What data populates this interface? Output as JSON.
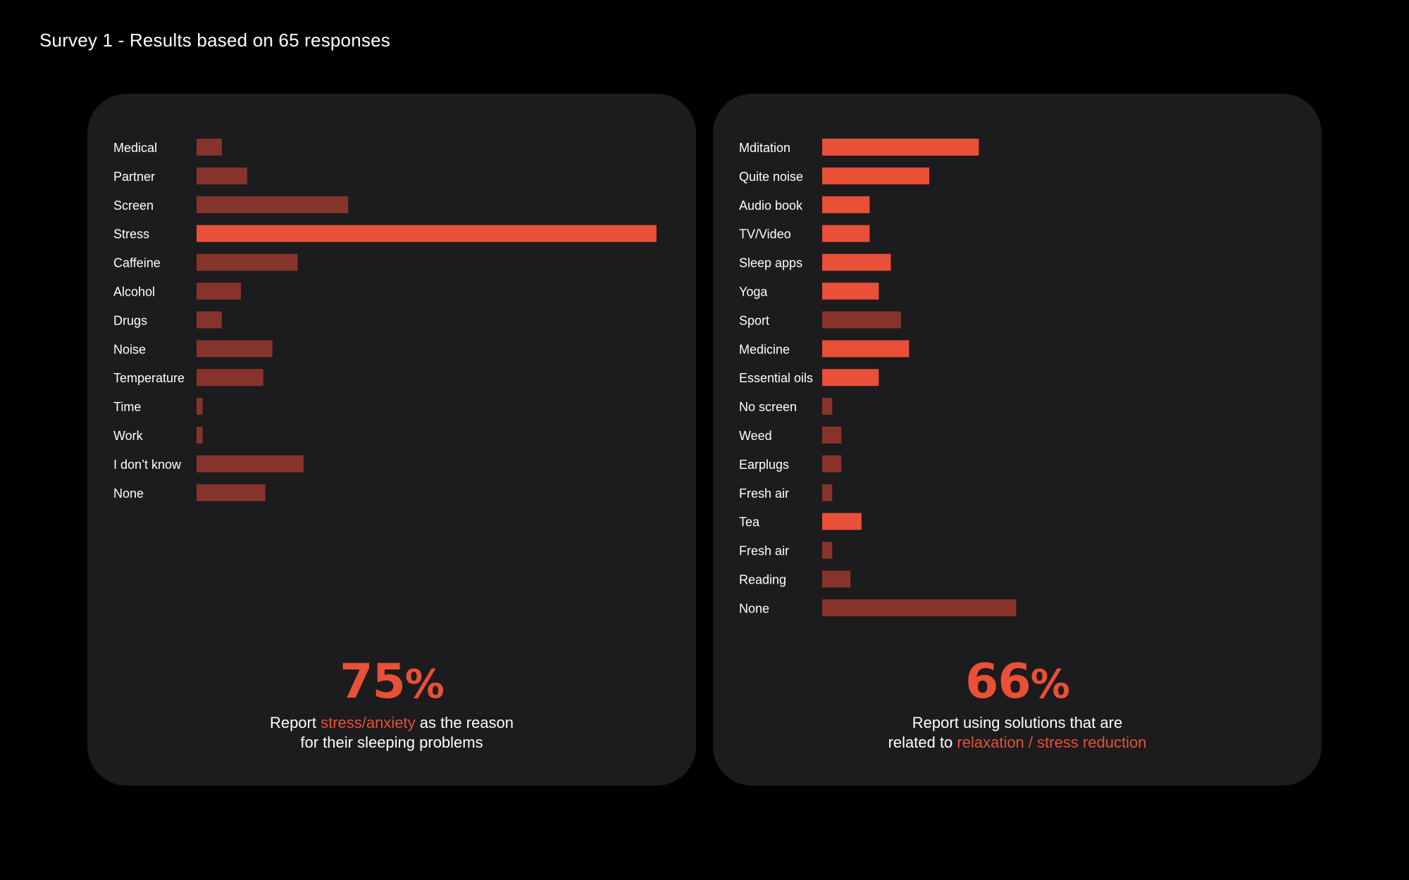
{
  "page": {
    "title": "Survey 1 -  Results based on 65 responses"
  },
  "colors": {
    "accent": "#e85037",
    "muted": "#86342b",
    "card_bg": "#1c1b1d",
    "page_bg": "#000000",
    "text": "#ffffff"
  },
  "left_panel": {
    "stat": {
      "number": "75",
      "unit": "%",
      "caption_pre": "Report ",
      "caption_highlight": "stress/anxiety",
      "caption_post": " as the reason",
      "caption_line2": "for their sleeping problems"
    }
  },
  "right_panel": {
    "stat": {
      "number": "66",
      "unit": "%",
      "caption_line1": "Report using solutions that are",
      "caption_pre": "related to ",
      "caption_highlight": "relaxation / stress reduction"
    }
  },
  "chart_data": [
    {
      "type": "bar",
      "orientation": "horizontal",
      "title": "",
      "xlabel": "",
      "ylabel": "",
      "grid": false,
      "xlim": [
        0,
        46
      ],
      "categories": [
        "Medical",
        "Partner",
        "Screen",
        "Stress",
        "Caffeine",
        "Alcohol",
        "Drugs",
        "Noise",
        "Temperature",
        "Time",
        "Work",
        "I don’t know",
        "None"
      ],
      "values": [
        2.5,
        5,
        15,
        45.5,
        10,
        4.4,
        2.5,
        7.5,
        6.6,
        0.6,
        0.6,
        10.6,
        6.8
      ],
      "highlighted": [
        false,
        false,
        false,
        true,
        false,
        false,
        false,
        false,
        false,
        false,
        false,
        false,
        false
      ]
    },
    {
      "type": "bar",
      "orientation": "horizontal",
      "title": "",
      "xlabel": "",
      "ylabel": "",
      "grid": false,
      "xlim": [
        0,
        46
      ],
      "categories": [
        "Mditation",
        "Quite noise",
        "Audio book",
        "TV/Video",
        "Sleep apps",
        "Yoga",
        "Sport",
        "Medicine",
        "Essential oils",
        "No screen",
        "Weed",
        "Earplugs",
        "Fresh air",
        "Tea",
        "Fresh air",
        "Reading",
        "None"
      ],
      "values": [
        15.5,
        10.6,
        4.7,
        4.7,
        6.8,
        5.6,
        7.8,
        8.6,
        5.6,
        1,
        1.9,
        1.9,
        1,
        3.9,
        1,
        2.8,
        19.2
      ],
      "highlighted": [
        true,
        true,
        true,
        true,
        true,
        true,
        false,
        true,
        true,
        false,
        false,
        false,
        false,
        true,
        false,
        false,
        false
      ]
    }
  ]
}
